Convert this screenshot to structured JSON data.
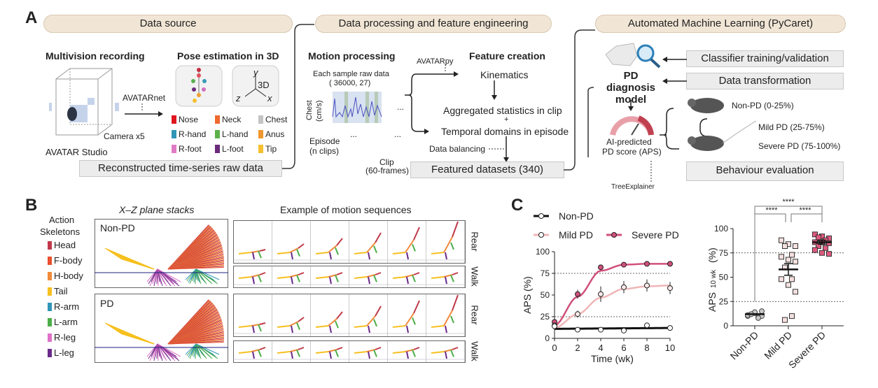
{
  "panel_a": {
    "letter": "A",
    "stage1": "Data source",
    "stage2": "Data processing and feature engineering",
    "stage3": "Automated Machine Learning (PyCaret)",
    "multivision": "Multivision recording",
    "pose": "Pose estimation in 3D",
    "studio": "AVATAR Studio",
    "camera": "Camera x5",
    "avatarnet": "AVATARnet",
    "axis_3d": "3D",
    "axis_x": "x",
    "axis_y": "y",
    "axis_z": "z",
    "keypoints": [
      {
        "label": "Nose",
        "color": "#e0141e"
      },
      {
        "label": "Neck",
        "color": "#ee6a2e"
      },
      {
        "label": "Chest",
        "color": "#c4c4c4"
      },
      {
        "label": "R-hand",
        "color": "#2f96b8"
      },
      {
        "label": "L-hand",
        "color": "#5cb04a"
      },
      {
        "label": "Anus",
        "color": "#f0962e"
      },
      {
        "label": "R-foot",
        "color": "#e07ac4"
      },
      {
        "label": "L-foot",
        "color": "#6a2a7a"
      },
      {
        "label": "Tip",
        "color": "#f4c030"
      }
    ],
    "reconstructed": "Reconstructed time-series raw data",
    "motion": "Motion processing",
    "each_sample": "Each sample raw data",
    "shape": "( 36000, 27)",
    "chest": "Chest",
    "chest_unit": "(cm/s)",
    "episode": "Episode",
    "n_clips": "(n clips)",
    "clip": "Clip",
    "frames": "(60-frames)",
    "ellipsis": "...",
    "avatarpy": "AVATARpy",
    "feature": "Feature creation",
    "kinematics": "Kinematics",
    "aggregated": "Aggregated statistics in clip",
    "plus": "+",
    "temporal": "Temporal domains in episode",
    "balancing": "Data balancing",
    "featured": "Featured datasets (340)",
    "classifier": "Classifier training/validation",
    "transformation": "Data transformation",
    "model": "PD diagnosis model",
    "ai_predicted": "AI-predicted",
    "aps": "PD score (APS)",
    "tree": "TreeExplainer",
    "non_pd": "Non-PD (0-25%)",
    "mild": "Mild PD (25-75%)",
    "severe": "Severe PD (75-100%)",
    "behaviour": "Behaviour evaluation"
  },
  "panel_b": {
    "letter": "B",
    "legend_title_1": "Action",
    "legend_title_2": "Skeletons",
    "skeletons": [
      {
        "label": "Head",
        "color": "#c0394a"
      },
      {
        "label": "F-body",
        "color": "#e8502e"
      },
      {
        "label": "H-body",
        "color": "#f08a3a"
      },
      {
        "label": "Tail",
        "color": "#f6c020"
      },
      {
        "label": "R-arm",
        "color": "#2f96b8"
      },
      {
        "label": "L-arm",
        "color": "#4cae48"
      },
      {
        "label": "R-leg",
        "color": "#e070c8"
      },
      {
        "label": "L-leg",
        "color": "#6a2a8a"
      }
    ],
    "stacks_title": "X–Z plane stacks",
    "sequences_title": "Example of motion sequences",
    "group_non_pd": "Non-PD",
    "group_pd": "PD",
    "rear": "Rear",
    "walk": "Walk"
  },
  "chart_data": [
    {
      "type": "line",
      "letter": "C",
      "xlabel": "Time  (wk)",
      "ylabel": "APS (%)",
      "xlim": [
        0,
        10
      ],
      "ylim": [
        0,
        100
      ],
      "xticks": [
        "0",
        "2",
        "4",
        "6",
        "8",
        "10"
      ],
      "yticks": [
        "0",
        "25",
        "50",
        "75",
        "100"
      ],
      "reference_lines": [
        25,
        75
      ],
      "legend": "top",
      "x": [
        0,
        2,
        4,
        6,
        8,
        10
      ],
      "series": [
        {
          "name": "Non-PD",
          "color": "#111111",
          "values": [
            14,
            10,
            10,
            9,
            15,
            12
          ],
          "errors": [
            0,
            0,
            0,
            0,
            0,
            0
          ],
          "fit": [
            11,
            11.2,
            11.4,
            11.6,
            11.8,
            12
          ]
        },
        {
          "name": "Mild PD",
          "color": "#f0b6b8",
          "values": [
            15,
            28,
            51,
            59,
            61,
            58
          ],
          "errors": [
            0,
            4,
            9,
            7,
            7,
            7
          ],
          "fit": [
            12,
            28,
            47,
            57,
            60,
            61
          ]
        },
        {
          "name": "Severe PD",
          "color": "#d0507a",
          "values": [
            19,
            51,
            82,
            85,
            86,
            86
          ],
          "errors": [
            0,
            5,
            3,
            2,
            1,
            1
          ],
          "fit": [
            15,
            48,
            78,
            85,
            86,
            86
          ]
        }
      ]
    },
    {
      "type": "scatter",
      "ylabel": "APS",
      "ylabel_sub": "10 wk",
      "ylabel_unit": "(%)",
      "ylim": [
        0,
        100
      ],
      "yticks": [
        "0",
        "25",
        "50",
        "75",
        "100"
      ],
      "reference_lines": [
        25,
        75
      ],
      "categories": [
        "Non-PD",
        "Mild PD",
        "Severe PD"
      ],
      "significance": [
        "****",
        "****",
        "****"
      ],
      "groups": [
        {
          "name": "Non-PD",
          "fill": "#c8c8c8",
          "marker": "circle",
          "values": [
            10,
            13,
            15,
            12,
            9,
            11,
            14,
            10,
            12,
            8
          ],
          "mean": 12
        },
        {
          "name": "Mild PD",
          "fill": "#f6e0e0",
          "marker": "square",
          "values": [
            88,
            84,
            82,
            82,
            73,
            71,
            68,
            66,
            60,
            48,
            48,
            42,
            35,
            6,
            10
          ],
          "mean": 58,
          "sem": 6
        },
        {
          "name": "Severe PD",
          "fill": "#e05a80",
          "marker": "square",
          "values": [
            94,
            92,
            90,
            90,
            88,
            86,
            86,
            85,
            82,
            80,
            78,
            75,
            74,
            91
          ],
          "mean": 86,
          "sem": 2
        }
      ]
    }
  ]
}
